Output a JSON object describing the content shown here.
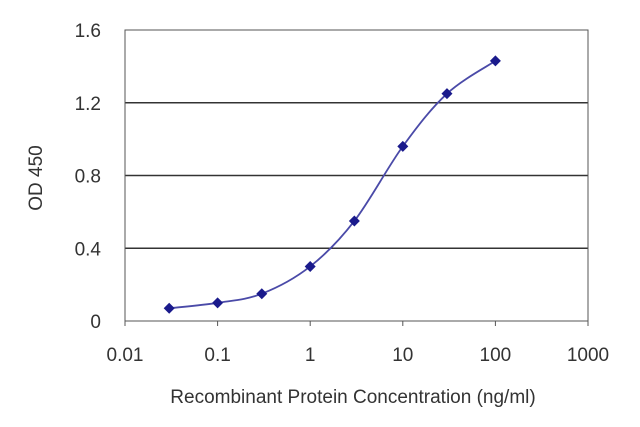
{
  "chart_data": {
    "type": "line",
    "title": "",
    "xlabel": "Recombinant Protein Concentration (ng/ml)",
    "ylabel": "OD 450",
    "xscale": "log",
    "xlim": [
      0.01,
      1000
    ],
    "ylim": [
      0,
      1.6
    ],
    "xticks": [
      0.01,
      0.1,
      1,
      10,
      100,
      1000
    ],
    "xtick_labels": [
      "0.01",
      "0.1",
      "1",
      "10",
      "100",
      "1000"
    ],
    "yticks": [
      0,
      0.4,
      0.8,
      1.2,
      1.6
    ],
    "ytick_labels": [
      "0",
      "0.4",
      "0.8",
      "1.2",
      "1.6"
    ],
    "grid": "horizontal",
    "legend": "none",
    "series": [
      {
        "x": [
          0.03,
          0.1,
          0.3,
          1,
          3,
          10,
          30,
          100
        ],
        "y": [
          0.07,
          0.1,
          0.15,
          0.3,
          0.55,
          0.96,
          1.25,
          1.43
        ]
      }
    ],
    "colors": {
      "line": "#4a4aa8",
      "marker": "#1a1a8c",
      "grid": "#333333",
      "axis": "#555555"
    }
  }
}
